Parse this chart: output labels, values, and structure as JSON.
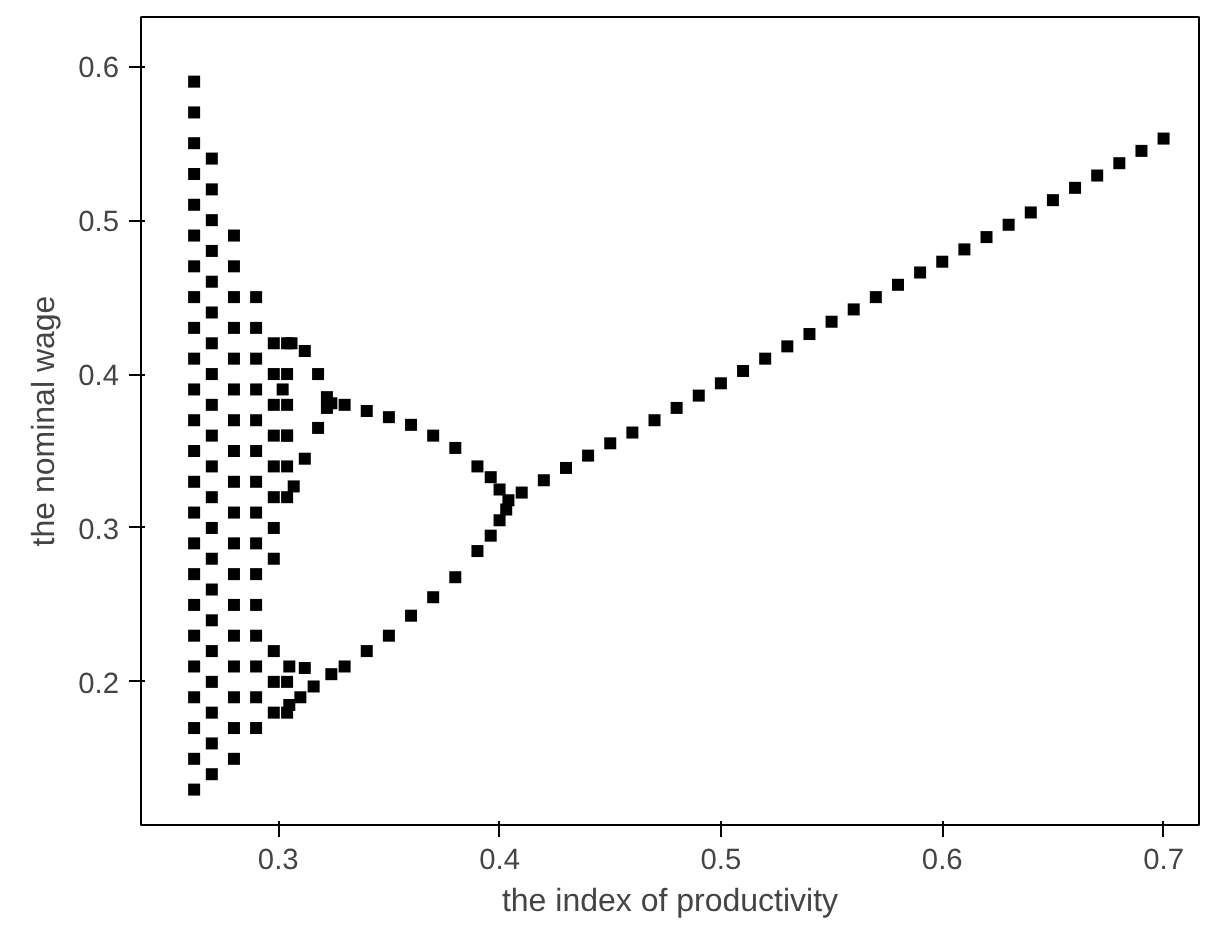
{
  "chart_data": {
    "type": "scatter",
    "xlabel": "the index of productivity",
    "ylabel": "the nominal wage",
    "xlim": [
      0.238,
      0.716
    ],
    "ylim": [
      0.107,
      0.632
    ],
    "xticks": [
      0.3,
      0.4,
      0.5,
      0.6,
      0.7
    ],
    "yticks": [
      0.2,
      0.3,
      0.4,
      0.5,
      0.6
    ],
    "grid": false,
    "marker": "square",
    "series": [
      {
        "color": "#000000",
        "x": [
          0.262,
          0.262,
          0.262,
          0.262,
          0.262,
          0.262,
          0.262,
          0.262,
          0.262,
          0.262,
          0.262,
          0.262,
          0.262,
          0.262,
          0.262,
          0.262,
          0.262,
          0.262,
          0.262,
          0.262,
          0.262,
          0.262,
          0.262,
          0.262,
          0.27,
          0.27,
          0.27,
          0.27,
          0.27,
          0.27,
          0.27,
          0.27,
          0.27,
          0.27,
          0.27,
          0.27,
          0.27,
          0.27,
          0.27,
          0.27,
          0.27,
          0.27,
          0.27,
          0.27,
          0.27,
          0.28,
          0.28,
          0.28,
          0.28,
          0.28,
          0.28,
          0.28,
          0.28,
          0.28,
          0.28,
          0.28,
          0.28,
          0.28,
          0.28,
          0.28,
          0.28,
          0.28,
          0.28,
          0.29,
          0.29,
          0.29,
          0.29,
          0.29,
          0.29,
          0.29,
          0.29,
          0.29,
          0.29,
          0.29,
          0.29,
          0.29,
          0.29,
          0.29,
          0.298,
          0.298,
          0.298,
          0.298,
          0.298,
          0.298,
          0.298,
          0.298,
          0.298,
          0.298,
          0.298,
          0.304,
          0.304,
          0.304,
          0.304,
          0.304,
          0.304,
          0.304,
          0.304
        ],
        "values": [
          0.13,
          0.15,
          0.17,
          0.19,
          0.21,
          0.23,
          0.25,
          0.27,
          0.29,
          0.31,
          0.33,
          0.35,
          0.37,
          0.39,
          0.41,
          0.43,
          0.45,
          0.47,
          0.49,
          0.51,
          0.53,
          0.55,
          0.57,
          0.59,
          0.14,
          0.16,
          0.18,
          0.2,
          0.22,
          0.24,
          0.26,
          0.28,
          0.3,
          0.32,
          0.34,
          0.36,
          0.38,
          0.4,
          0.42,
          0.44,
          0.46,
          0.48,
          0.5,
          0.52,
          0.54,
          0.15,
          0.17,
          0.19,
          0.21,
          0.23,
          0.25,
          0.27,
          0.29,
          0.31,
          0.33,
          0.35,
          0.37,
          0.39,
          0.41,
          0.43,
          0.45,
          0.47,
          0.49,
          0.17,
          0.19,
          0.21,
          0.23,
          0.25,
          0.27,
          0.29,
          0.31,
          0.33,
          0.35,
          0.37,
          0.39,
          0.41,
          0.43,
          0.45,
          0.18,
          0.2,
          0.22,
          0.28,
          0.3,
          0.32,
          0.34,
          0.36,
          0.38,
          0.4,
          0.42,
          0.18,
          0.2,
          0.32,
          0.34,
          0.36,
          0.38,
          0.4,
          0.42
        ]
      },
      {
        "color": "#000000",
        "x": [
          0.306,
          0.312,
          0.318,
          0.322,
          0.302,
          0.304,
          0.307,
          0.312,
          0.318,
          0.322,
          0.305,
          0.312,
          0.305,
          0.31,
          0.316
        ],
        "values": [
          0.42,
          0.415,
          0.4,
          0.385,
          0.39,
          0.36,
          0.327,
          0.345,
          0.365,
          0.378,
          0.21,
          0.209,
          0.185,
          0.19,
          0.197
        ]
      },
      {
        "color": "#000000",
        "x": [
          0.324,
          0.33,
          0.34,
          0.35,
          0.36,
          0.37,
          0.38,
          0.39,
          0.396,
          0.4,
          0.324,
          0.33,
          0.34,
          0.35,
          0.36,
          0.37,
          0.38,
          0.39,
          0.396,
          0.4,
          0.403
        ],
        "values": [
          0.381,
          0.38,
          0.376,
          0.372,
          0.367,
          0.36,
          0.352,
          0.34,
          0.333,
          0.325,
          0.205,
          0.21,
          0.22,
          0.23,
          0.243,
          0.255,
          0.268,
          0.285,
          0.295,
          0.305,
          0.312
        ]
      },
      {
        "color": "#000000",
        "x": [
          0.404,
          0.41,
          0.42,
          0.43,
          0.44,
          0.45,
          0.46,
          0.47,
          0.48,
          0.49,
          0.5,
          0.51,
          0.52,
          0.53,
          0.54,
          0.55,
          0.56,
          0.57,
          0.58,
          0.59,
          0.6,
          0.61,
          0.62,
          0.63,
          0.64,
          0.65,
          0.66,
          0.67,
          0.68,
          0.69,
          0.7
        ],
        "values": [
          0.318,
          0.323,
          0.331,
          0.339,
          0.347,
          0.355,
          0.362,
          0.37,
          0.378,
          0.386,
          0.394,
          0.402,
          0.41,
          0.418,
          0.426,
          0.434,
          0.442,
          0.45,
          0.458,
          0.466,
          0.473,
          0.481,
          0.489,
          0.497,
          0.505,
          0.513,
          0.521,
          0.529,
          0.537,
          0.545,
          0.553
        ]
      }
    ]
  }
}
